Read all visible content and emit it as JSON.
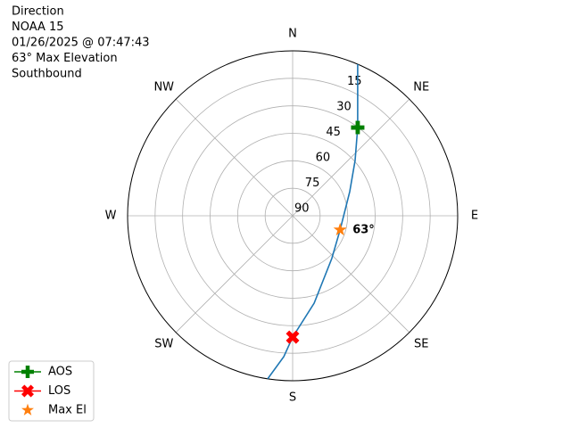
{
  "chart_data": {
    "type": "polar",
    "title_lines": [
      "Direction",
      "NOAA 15",
      "01/26/2025 @ 07:47:43",
      "63° Max Elevation",
      "Southbound"
    ],
    "theta_direction": "clockwise",
    "theta_zero": "N",
    "thetaticks": [
      {
        "value": 0,
        "label": "N"
      },
      {
        "value": 45,
        "label": "NE"
      },
      {
        "value": 90,
        "label": "E"
      },
      {
        "value": 135,
        "label": "SE"
      },
      {
        "value": 180,
        "label": "S"
      },
      {
        "value": 225,
        "label": "SW"
      },
      {
        "value": 270,
        "label": "W"
      },
      {
        "value": 315,
        "label": "NW"
      }
    ],
    "ylim": [
      90,
      0
    ],
    "yticks": [
      15,
      30,
      45,
      60,
      75,
      90
    ],
    "grid": true,
    "track": {
      "color": "#1f77b4",
      "azimuth": [
        23.2,
        28.9,
        36.4,
        48.5,
        67,
        106.5,
        137.5,
        166.2,
        180,
        183.6,
        188.7
      ],
      "elevation": [
        0,
        16.6,
        30.2,
        44.5,
        56.2,
        63,
        58.4,
        40.9,
        23.8,
        13,
        0
      ]
    },
    "series": [
      {
        "name": "AOS",
        "color": "#008000",
        "marker": "plus",
        "azimuth": 36.4,
        "elevation": 30.2
      },
      {
        "name": "LOS",
        "color": "#ff0000",
        "marker": "x",
        "azimuth": 180,
        "elevation": 23.8
      },
      {
        "name": "Max El",
        "color": "#ff7f0e",
        "marker": "star",
        "azimuth": 106.5,
        "elevation": 63
      }
    ],
    "annotation": "63°",
    "legend": "lower left"
  }
}
